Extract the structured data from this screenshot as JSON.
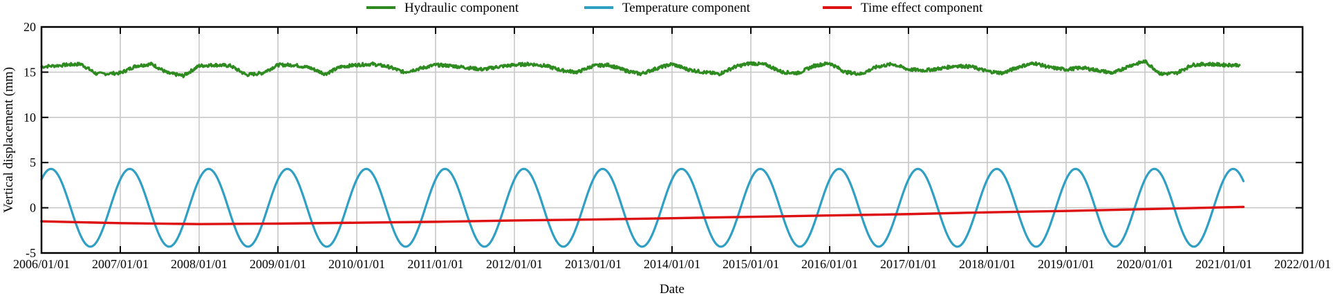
{
  "chart_data": {
    "type": "line",
    "title": "",
    "xlabel": "Date",
    "ylabel": "Vertical displacement (mm)",
    "ylim": [
      -5,
      20
    ],
    "yticks": [
      -5,
      0,
      5,
      10,
      15,
      20
    ],
    "xlim_years": [
      2006,
      2022
    ],
    "xtick_labels": [
      "2006/01/01",
      "2007/01/01",
      "2008/01/01",
      "2009/01/01",
      "2010/01/01",
      "2011/01/01",
      "2012/01/01",
      "2013/01/01",
      "2014/01/01",
      "2015/01/01",
      "2016/01/01",
      "2017/01/01",
      "2018/01/01",
      "2019/01/01",
      "2020/01/01",
      "2021/01/01",
      "2022/01/01"
    ],
    "grid": true,
    "legend_position": "top-center",
    "series": [
      {
        "name": "Hydraulic component",
        "color": "#2e8b1f",
        "x": [
          2006.0,
          2006.3,
          2006.5,
          2006.7,
          2007.0,
          2007.2,
          2007.4,
          2007.6,
          2007.8,
          2008.0,
          2008.2,
          2008.4,
          2008.6,
          2008.8,
          2009.0,
          2009.2,
          2009.4,
          2009.6,
          2009.8,
          2010.0,
          2010.2,
          2010.4,
          2010.6,
          2010.8,
          2011.0,
          2011.2,
          2011.4,
          2011.6,
          2011.8,
          2012.0,
          2012.2,
          2012.4,
          2012.6,
          2012.8,
          2013.0,
          2013.2,
          2013.4,
          2013.6,
          2013.8,
          2014.0,
          2014.2,
          2014.4,
          2014.6,
          2014.8,
          2015.0,
          2015.2,
          2015.4,
          2015.6,
          2015.8,
          2016.0,
          2016.2,
          2016.4,
          2016.6,
          2016.8,
          2017.0,
          2017.2,
          2017.4,
          2017.6,
          2017.8,
          2018.0,
          2018.2,
          2018.4,
          2018.6,
          2018.8,
          2019.0,
          2019.2,
          2019.4,
          2019.6,
          2019.8,
          2020.0,
          2020.2,
          2020.4,
          2020.6,
          2020.8,
          2021.0,
          2021.2
        ],
        "values": [
          15.6,
          15.8,
          15.9,
          14.8,
          14.9,
          15.7,
          15.9,
          14.9,
          14.6,
          15.7,
          15.8,
          15.7,
          14.7,
          14.9,
          15.8,
          15.8,
          15.5,
          14.8,
          15.6,
          15.8,
          15.9,
          15.6,
          15.0,
          15.4,
          15.8,
          15.7,
          15.5,
          15.3,
          15.6,
          15.8,
          15.9,
          15.7,
          15.2,
          15.0,
          15.7,
          15.8,
          15.2,
          14.8,
          15.4,
          15.9,
          15.3,
          15.0,
          14.8,
          15.6,
          16.0,
          15.8,
          15.0,
          14.9,
          15.7,
          16.0,
          15.0,
          14.8,
          15.6,
          15.9,
          15.3,
          15.2,
          15.4,
          15.7,
          15.6,
          15.1,
          14.9,
          15.6,
          16.0,
          15.5,
          15.3,
          15.5,
          15.2,
          14.9,
          15.7,
          16.2,
          14.8,
          14.9,
          15.8,
          15.9,
          15.8,
          15.8
        ]
      },
      {
        "name": "Temperature component",
        "color": "#2f9fc4",
        "amplitude": 4.3,
        "peak_offset_years": 0.12,
        "period_years": 1.0,
        "x_start": 2006.0,
        "x_end": 2021.25
      },
      {
        "name": "Time effect component",
        "color": "#dd1111",
        "x": [
          2006.0,
          2007.0,
          2008.0,
          2009.0,
          2010.0,
          2011.0,
          2012.0,
          2013.0,
          2014.0,
          2015.0,
          2016.0,
          2017.0,
          2018.0,
          2019.0,
          2020.0,
          2021.0,
          2021.25
        ],
        "values": [
          -1.5,
          -1.7,
          -1.8,
          -1.75,
          -1.65,
          -1.55,
          -1.4,
          -1.3,
          -1.15,
          -1.0,
          -0.85,
          -0.7,
          -0.5,
          -0.35,
          -0.15,
          0.05,
          0.1
        ]
      }
    ]
  }
}
